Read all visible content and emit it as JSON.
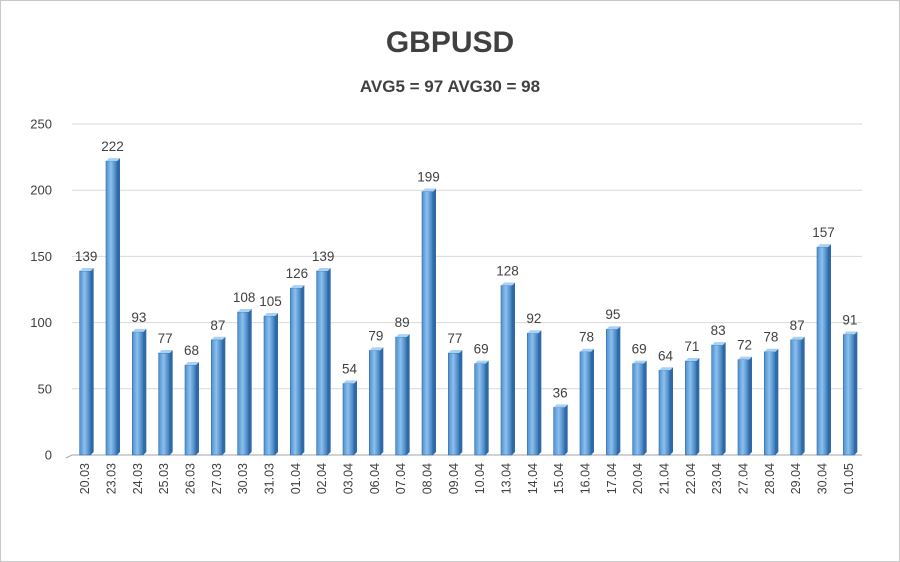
{
  "chart_data": {
    "type": "bar",
    "title": "GBPUSD",
    "subtitle": "AVG5 = 97 AVG30 = 98",
    "xlabel": "",
    "ylabel": "",
    "ylim": [
      0,
      250
    ],
    "yticks": [
      0,
      50,
      100,
      150,
      200,
      250
    ],
    "grid": true,
    "legend": "none",
    "bar_color": "#5b9bd5",
    "bar_edge_color": "#2e6fa8",
    "categories": [
      "20.03",
      "23.03",
      "24.03",
      "25.03",
      "26.03",
      "27.03",
      "30.03",
      "31.03",
      "01.04",
      "02.04",
      "03.04",
      "06.04",
      "07.04",
      "08.04",
      "09.04",
      "10.04",
      "13.04",
      "14.04",
      "15.04",
      "16.04",
      "17.04",
      "20.04",
      "21.04",
      "22.04",
      "23.04",
      "27.04",
      "28.04",
      "29.04",
      "30.04",
      "01.05"
    ],
    "values": [
      139,
      222,
      93,
      77,
      68,
      87,
      108,
      105,
      126,
      139,
      54,
      79,
      89,
      199,
      77,
      69,
      128,
      92,
      36,
      78,
      95,
      69,
      64,
      71,
      83,
      72,
      78,
      87,
      157,
      91
    ]
  }
}
